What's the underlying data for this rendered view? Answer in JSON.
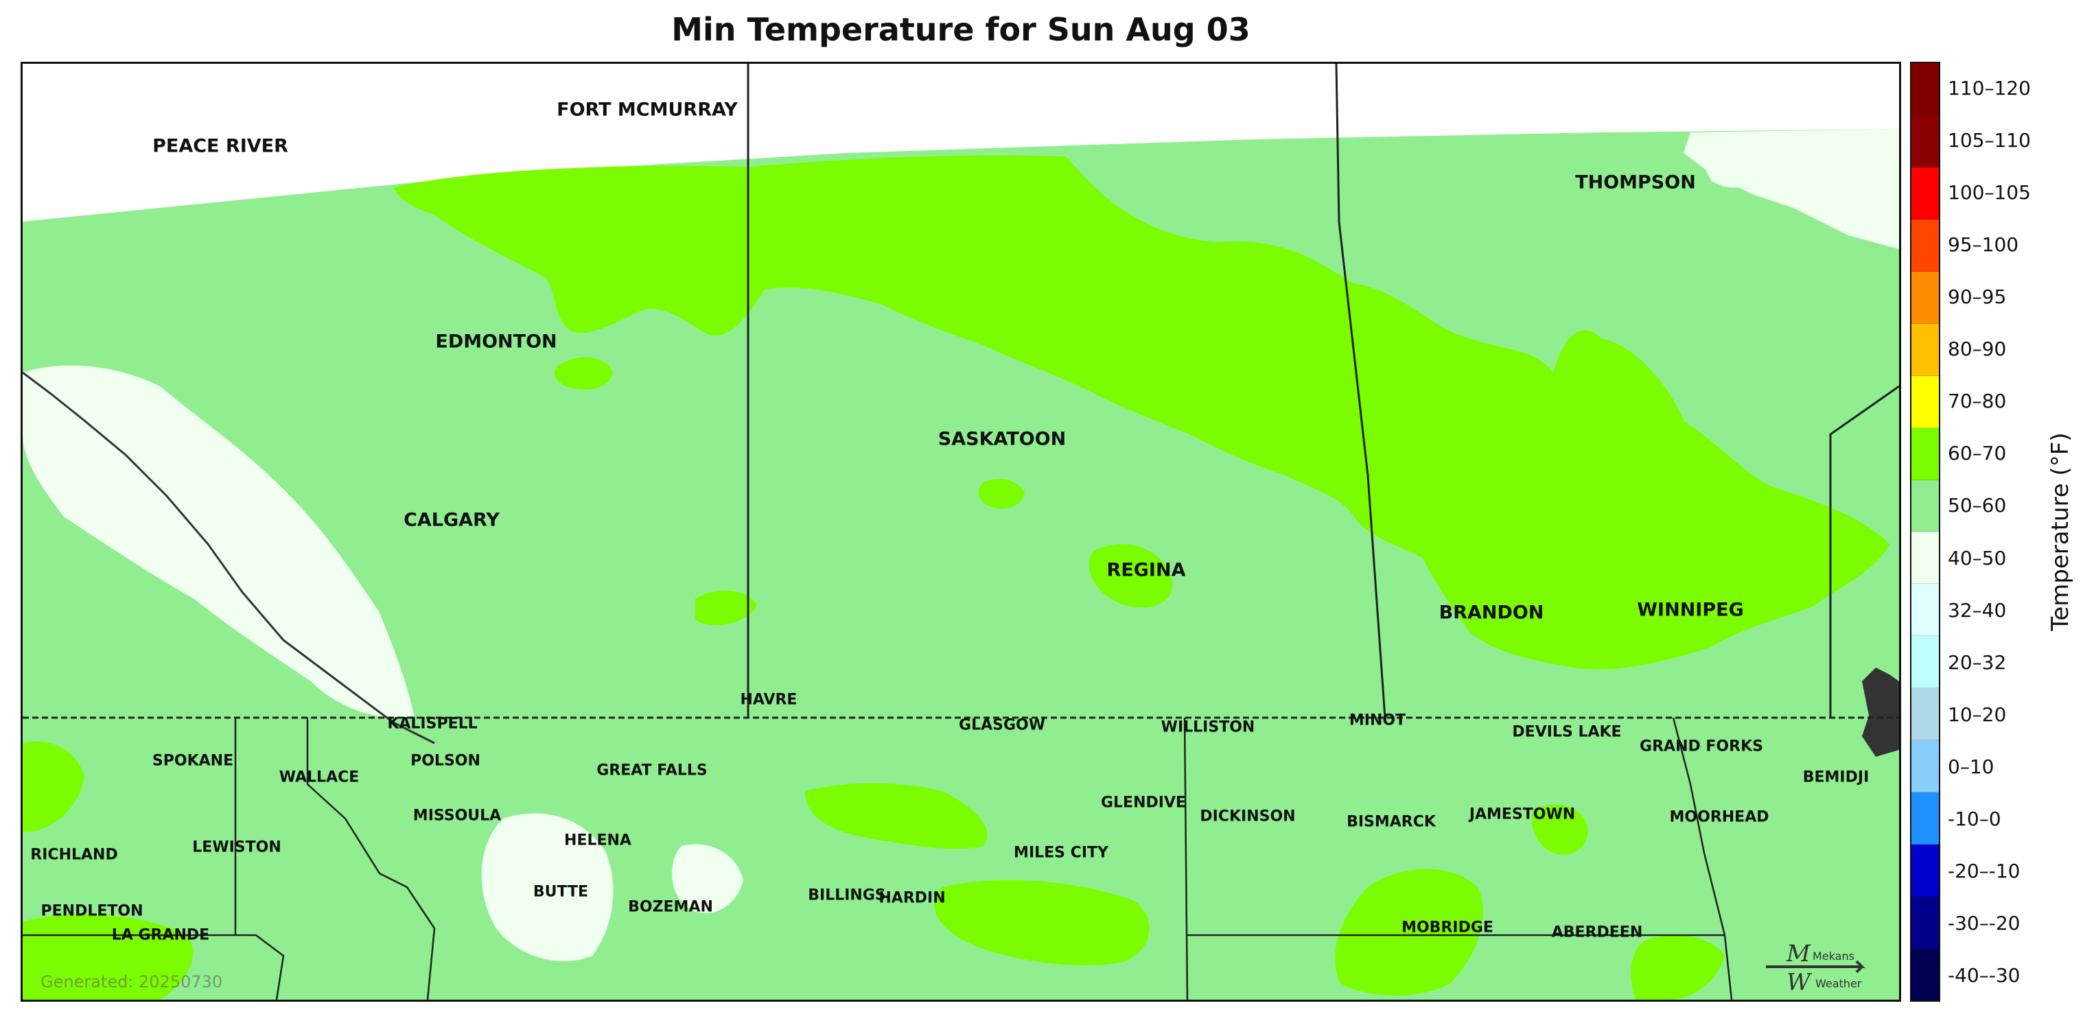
{
  "title": "Min Temperature for Sun Aug 03",
  "legend": {
    "title": "Temperature (°F)",
    "bins": [
      {
        "label": "110–120",
        "color": "#800000"
      },
      {
        "label": "105–110",
        "color": "#8b0000"
      },
      {
        "label": "100–105",
        "color": "#ff0000"
      },
      {
        "label": "95–100",
        "color": "#ff4500"
      },
      {
        "label": "90–95",
        "color": "#ff8c00"
      },
      {
        "label": "80–90",
        "color": "#ffc000"
      },
      {
        "label": "70–80",
        "color": "#ffff00"
      },
      {
        "label": "60–70",
        "color": "#7cfc00"
      },
      {
        "label": "50–60",
        "color": "#90ee90"
      },
      {
        "label": "40–50",
        "color": "#f0fff0"
      },
      {
        "label": "32–40",
        "color": "#e0ffff"
      },
      {
        "label": "20–32",
        "color": "#c0ffff"
      },
      {
        "label": "10–20",
        "color": "#add8e6"
      },
      {
        "label": "0–10",
        "color": "#87cefa"
      },
      {
        "label": "-10–0",
        "color": "#1e90ff"
      },
      {
        "label": "-20–-10",
        "color": "#0000cd"
      },
      {
        "label": "-30–-20",
        "color": "#00008b"
      },
      {
        "label": "-40–-30",
        "color": "#000050"
      }
    ]
  },
  "cities": [
    {
      "name": "PEACE RIVER",
      "size": "large"
    },
    {
      "name": "FORT MCMURRAY",
      "size": "large"
    },
    {
      "name": "THOMPSON",
      "size": "large"
    },
    {
      "name": "EDMONTON",
      "size": "large"
    },
    {
      "name": "SASKATOON",
      "size": "large"
    },
    {
      "name": "CALGARY",
      "size": "large"
    },
    {
      "name": "REGINA",
      "size": "large"
    },
    {
      "name": "BRANDON",
      "size": "large"
    },
    {
      "name": "WINNIPEG",
      "size": "large"
    },
    {
      "name": "HAVRE",
      "size": "small"
    },
    {
      "name": "GLASGOW",
      "size": "small"
    },
    {
      "name": "KALISPELL",
      "size": "small"
    },
    {
      "name": "WILLISTON",
      "size": "small"
    },
    {
      "name": "MINOT",
      "size": "small"
    },
    {
      "name": "DEVILS LAKE",
      "size": "small"
    },
    {
      "name": "GRAND FORKS",
      "size": "small"
    },
    {
      "name": "SPOKANE",
      "size": "small"
    },
    {
      "name": "POLSON",
      "size": "small"
    },
    {
      "name": "WALLACE",
      "size": "small"
    },
    {
      "name": "GREAT FALLS",
      "size": "small"
    },
    {
      "name": "BEMIDJI",
      "size": "small"
    },
    {
      "name": "GLENDIVE",
      "size": "small"
    },
    {
      "name": "MISSOULA",
      "size": "small"
    },
    {
      "name": "DICKINSON",
      "size": "small"
    },
    {
      "name": "BISMARCK",
      "size": "small"
    },
    {
      "name": "JAMESTOWN",
      "size": "small"
    },
    {
      "name": "MOORHEAD",
      "size": "small"
    },
    {
      "name": "HELENA",
      "size": "small"
    },
    {
      "name": "MILES CITY",
      "size": "small"
    },
    {
      "name": "RICHLAND",
      "size": "small"
    },
    {
      "name": "LEWISTON",
      "size": "small"
    },
    {
      "name": "BUTTE",
      "size": "small"
    },
    {
      "name": "BILLINGS",
      "size": "small"
    },
    {
      "name": "HARDIN",
      "size": "small"
    },
    {
      "name": "BOZEMAN",
      "size": "small"
    },
    {
      "name": "PENDLETON",
      "size": "small"
    },
    {
      "name": "MOBRIDGE",
      "size": "small"
    },
    {
      "name": "ABERDEEN",
      "size": "small"
    },
    {
      "name": "LA GRANDE",
      "size": "small"
    }
  ],
  "footer": {
    "generated": "Generated: 20250730"
  },
  "logo": {
    "line1": "Mekans",
    "line2": "Weather"
  }
}
